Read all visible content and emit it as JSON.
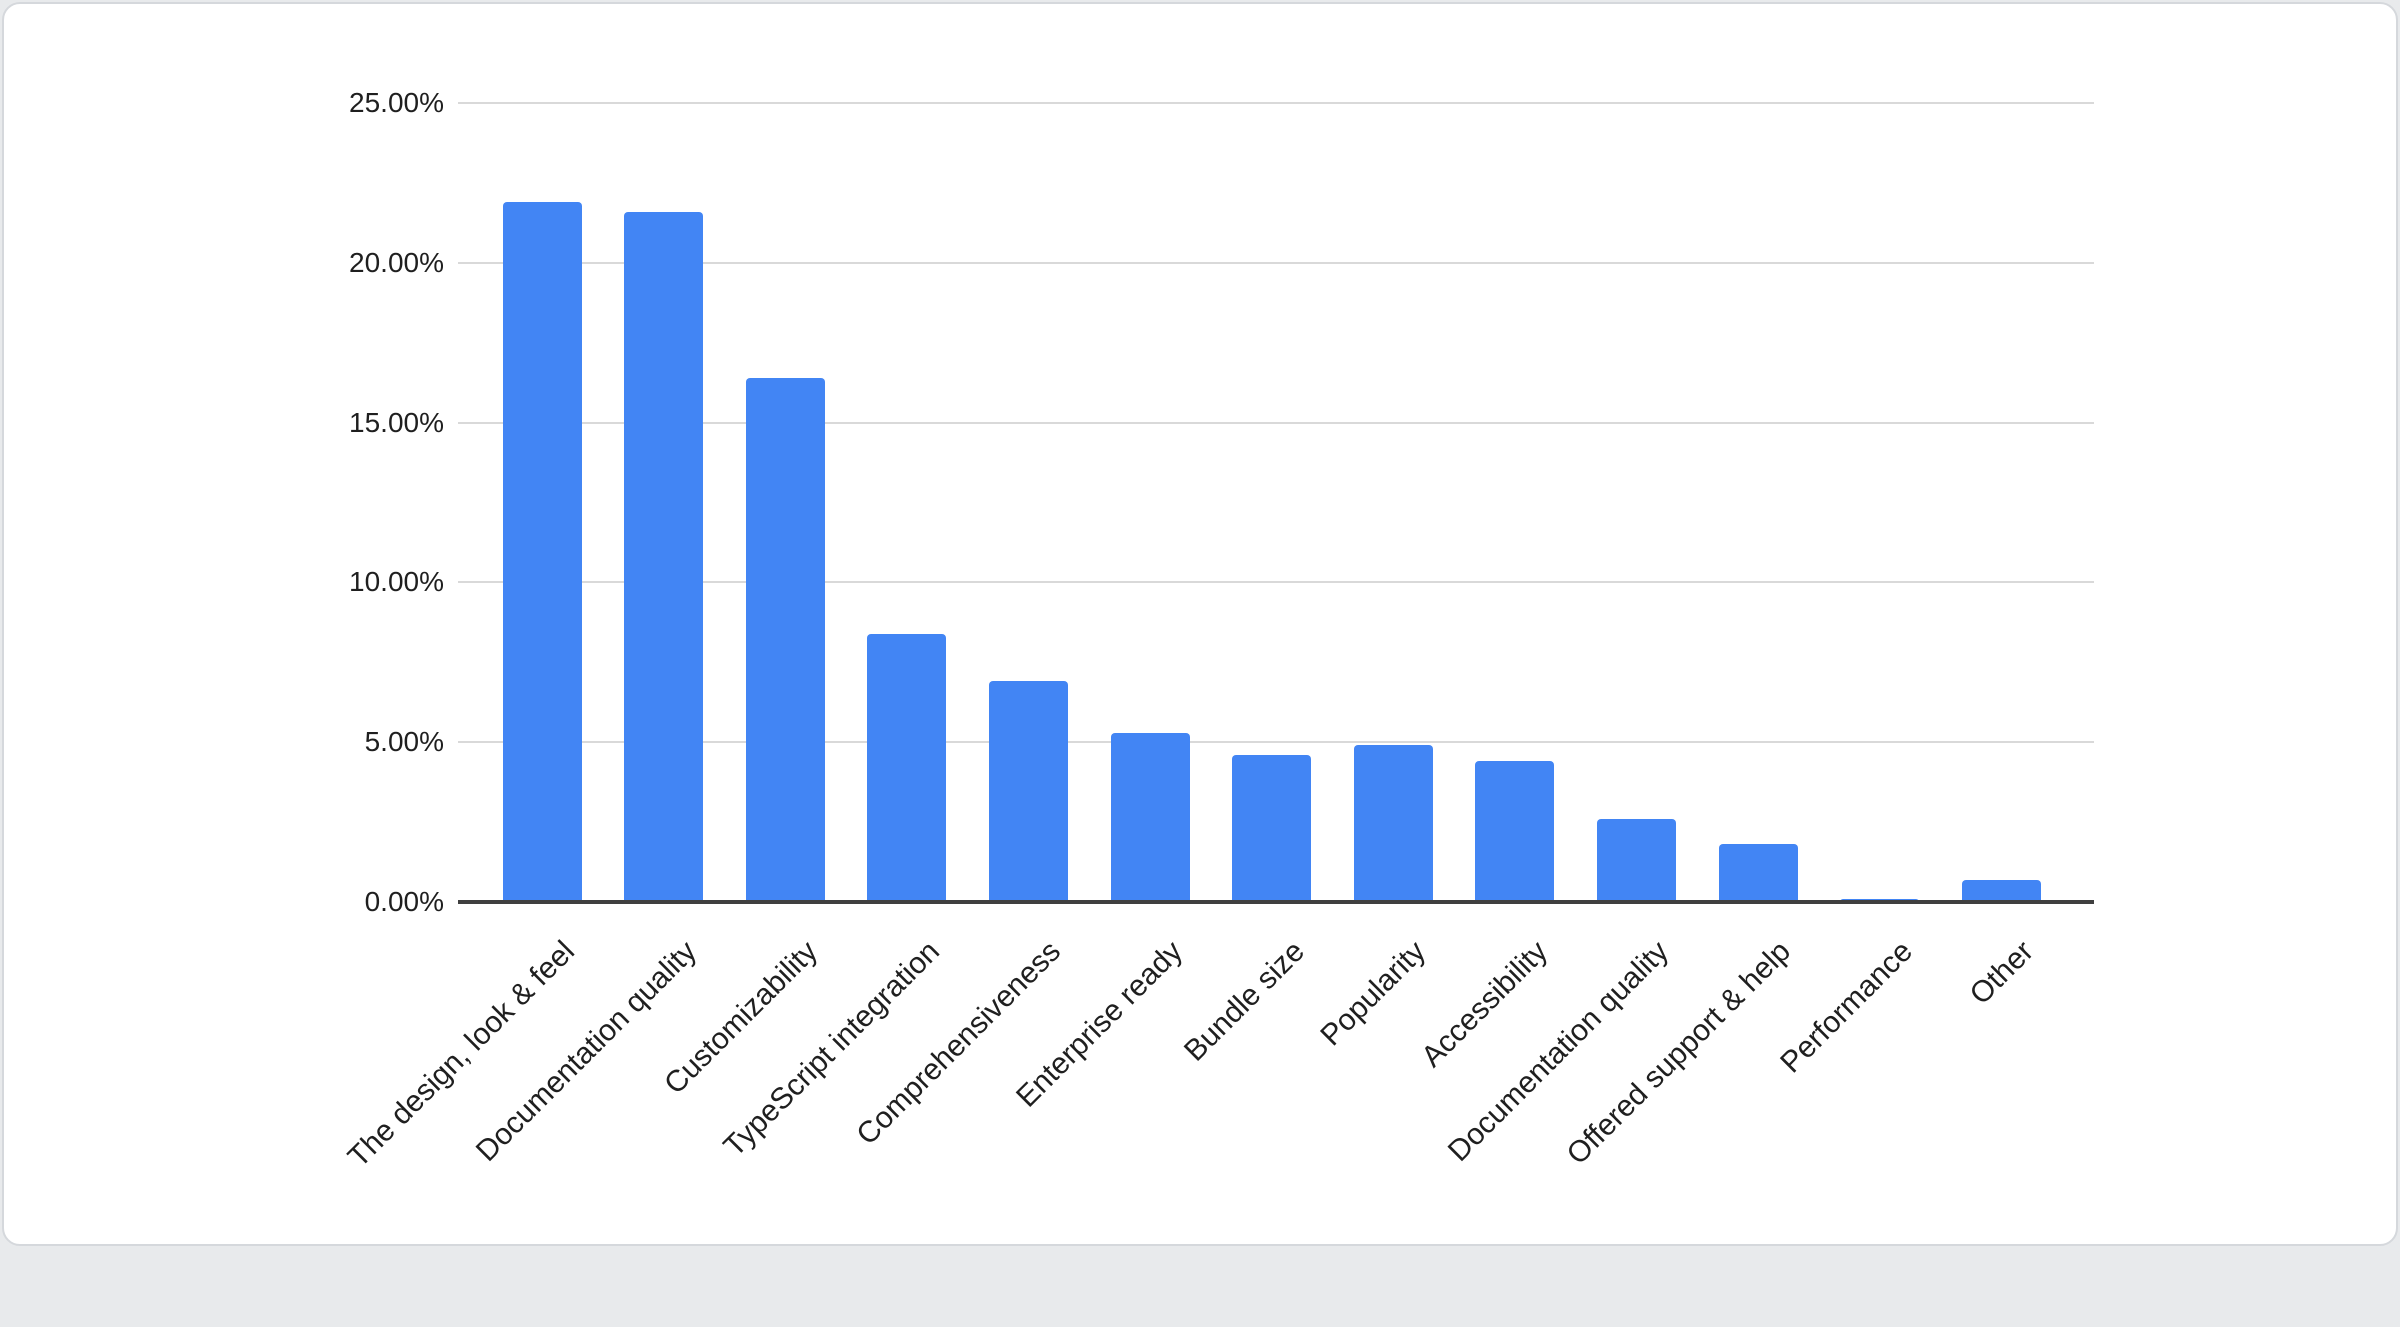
{
  "page": {
    "background_color": "#e8eaec"
  },
  "card": {
    "background_color": "#ffffff",
    "border_color": "#d5d8dc"
  },
  "chart_data": {
    "type": "bar",
    "title": "",
    "xlabel": "",
    "ylabel": "",
    "categories": [
      "The design, look & feel",
      "Documentation quality",
      "Customizability",
      "TypeScript integration",
      "Comprehensiveness",
      "Enterprise ready",
      "Bundle size",
      "Popularity",
      "Accessibility",
      "Documentation quality",
      "Offered support & help",
      "Performance",
      "Other"
    ],
    "values": [
      21.9,
      21.6,
      16.4,
      8.4,
      6.9,
      5.3,
      4.6,
      4.9,
      4.4,
      2.6,
      1.8,
      0.1,
      0.7
    ],
    "value_unit": "%",
    "ylim": [
      0,
      25
    ],
    "y_ticks": [
      0,
      5,
      10,
      15,
      20,
      25
    ],
    "y_tick_labels": [
      "0.00%",
      "5.00%",
      "10.00%",
      "15.00%",
      "20.00%",
      "25.00%"
    ],
    "grid": true,
    "legend_position": "none",
    "x_label_rotation_deg": -45,
    "bar_color": "#4285f4",
    "gridline_color": "#d9d9d9",
    "axis_line_color": "#3f3f3f",
    "tick_label_color": "#1f1f1f"
  }
}
